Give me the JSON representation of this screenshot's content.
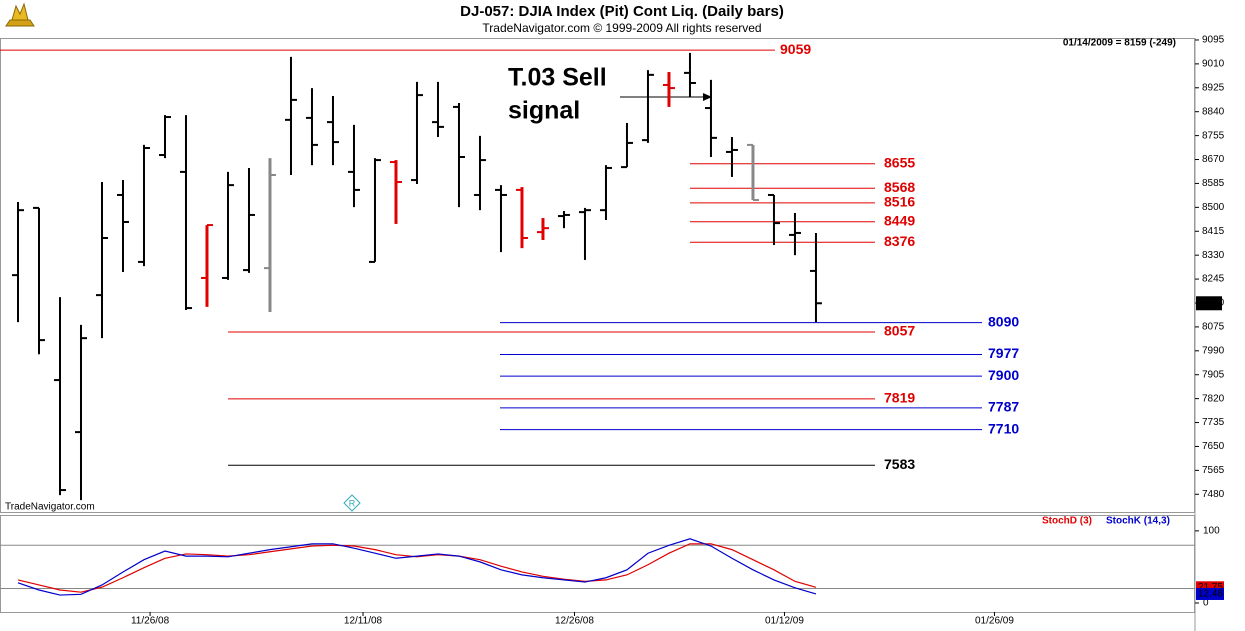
{
  "chart_data": [
    {
      "type": "ohlc",
      "title": "DJ-057:  DJIA Index (Pit) Cont Liq.  (Daily bars)",
      "subtitle": "TradeNavigator.com © 1999-2009 All rights reserved",
      "info": "01/14/2009 = 8159 (-249)",
      "watermark": "TradeNavigator.com",
      "annotations": [
        "T.03 Sell",
        "signal"
      ],
      "xlim": [
        -0.857,
        56.05
      ],
      "ylim": [
        7417,
        9102
      ],
      "yticks": [
        9095,
        9010,
        8925,
        8840,
        8755,
        8670,
        8585,
        8500,
        8415,
        8330,
        8245,
        8160,
        8075,
        7990,
        7905,
        7820,
        7735,
        7650,
        7565,
        7480
      ],
      "open": [
        8259,
        8498,
        7886,
        7701,
        8188,
        8544,
        8306,
        8686,
        8626,
        8249,
        8249,
        8277,
        8284,
        8811,
        8818,
        8803,
        8626,
        8306,
        8661,
        8597,
        8803,
        8857,
        8544,
        8562,
        8562,
        8412,
        8469,
        8483,
        8490,
        8643,
        8739,
        8935,
        8978,
        8853,
        8697,
        8722,
        8544,
        8402,
        8274
      ],
      "high": [
        8519,
        8498,
        8181,
        8082,
        8590,
        8597,
        8722,
        8828,
        8828,
        8437,
        8626,
        8640,
        8675,
        9035,
        8924,
        8896,
        8793,
        8675,
        8668,
        8946,
        8946,
        8871,
        8754,
        8579,
        8572,
        8462,
        8487,
        8498,
        8650,
        8800,
        8988,
        8981,
        9049,
        8953,
        8750,
        8722,
        8544,
        8480,
        8409
      ],
      "low": [
        8092,
        7978,
        7477,
        7459,
        8035,
        8270,
        8291,
        8675,
        8135,
        8146,
        8242,
        8267,
        8128,
        8615,
        8650,
        8650,
        8501,
        8306,
        8441,
        8583,
        8750,
        8501,
        8490,
        8341,
        8355,
        8384,
        8426,
        8313,
        8455,
        8643,
        8729,
        8857,
        8892,
        8679,
        8608,
        8526,
        8366,
        8330,
        8092
      ],
      "close": [
        8490,
        8028,
        7495,
        8035,
        8391,
        8448,
        8711,
        8821,
        8142,
        8437,
        8579,
        8473,
        8615,
        8882,
        8722,
        8732,
        8562,
        8668,
        8590,
        8899,
        8786,
        8679,
        8668,
        8544,
        8391,
        8426,
        8473,
        8490,
        8640,
        8729,
        8971,
        8924,
        8942,
        8747,
        8704,
        8526,
        8444,
        8409,
        8159
      ],
      "colors": [
        "#000000",
        "#000000",
        "#000000",
        "#000000",
        "#000000",
        "#000000",
        "#000000",
        "#000000",
        "#000000",
        "#e00000",
        "#000000",
        "#000000",
        "#888888",
        "#000000",
        "#000000",
        "#000000",
        "#000000",
        "#000000",
        "#e00000",
        "#000000",
        "#000000",
        "#000000",
        "#000000",
        "#000000",
        "#e00000",
        "#e00000",
        "#000000",
        "#000000",
        "#000000",
        "#000000",
        "#000000",
        "#e00000",
        "#000000",
        "#000000",
        "#000000",
        "#888888",
        "#000000",
        "#000000",
        "#000000"
      ],
      "levels": [
        {
          "value": 9059,
          "color": "#e00000"
        },
        {
          "value": 8655,
          "color": "#e00000"
        },
        {
          "value": 8568,
          "color": "#e00000"
        },
        {
          "value": 8516,
          "color": "#e00000"
        },
        {
          "value": 8449,
          "color": "#e00000"
        },
        {
          "value": 8376,
          "color": "#e00000"
        },
        {
          "value": 8090,
          "color": "#0000cc"
        },
        {
          "value": 8057,
          "color": "#e00000"
        },
        {
          "value": 7977,
          "color": "#0000cc"
        },
        {
          "value": 7900,
          "color": "#0000cc"
        },
        {
          "value": 7819,
          "color": "#e00000"
        },
        {
          "value": 7787,
          "color": "#0000cc"
        },
        {
          "value": 7710,
          "color": "#0000cc"
        },
        {
          "value": 7583,
          "color": "#000000"
        }
      ]
    },
    {
      "type": "line",
      "xlim": [
        -0.857,
        56.05
      ],
      "ylim": [
        -12.5,
        122
      ],
      "yticks": [
        100,
        0
      ],
      "xticks": [
        {
          "value": 6.29,
          "label": "11/26/08"
        },
        {
          "value": 16.43,
          "label": "12/11/08"
        },
        {
          "value": 26.5,
          "label": "12/26/08"
        },
        {
          "value": 36.5,
          "label": "01/12/09"
        },
        {
          "value": 46.5,
          "label": "01/26/09"
        }
      ],
      "reference_lines": [
        80,
        20
      ],
      "value_labels": [
        "21.75",
        "12.48"
      ],
      "series": [
        {
          "name": "StochD (3)",
          "color": "#e00000",
          "values": [
            32,
            25,
            18,
            15,
            22,
            35,
            49,
            62,
            68,
            67,
            65,
            67,
            71,
            75,
            79,
            80,
            79,
            74,
            67,
            64,
            67,
            65,
            60,
            51,
            43,
            37,
            33,
            30,
            32,
            39,
            53,
            69,
            82,
            82,
            74,
            60,
            46,
            30,
            21.75
          ]
        },
        {
          "name": "StochK (14,3)",
          "color": "#0000cc",
          "values": [
            28,
            18,
            11,
            12,
            25,
            43,
            60,
            72,
            65,
            65,
            64,
            69,
            74,
            78,
            82,
            82,
            76,
            69,
            62,
            65,
            68,
            65,
            57,
            46,
            39,
            35,
            32,
            29,
            35,
            46,
            69,
            80,
            89,
            79,
            62,
            46,
            32,
            21,
            12.48
          ]
        }
      ]
    }
  ]
}
